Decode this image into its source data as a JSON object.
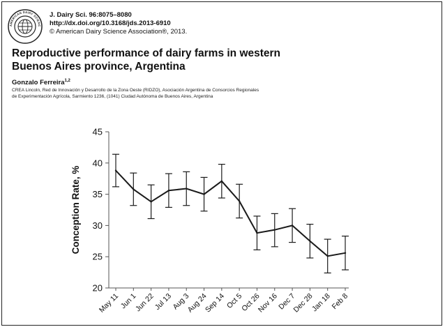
{
  "journal": {
    "citation": "J. Dairy Sci. 96:8075–8080",
    "doi": "http://dx.doi.org/10.3168/jds.2013-6910",
    "copyright": "© American Dairy Science Association®, 2013.",
    "seal_text": "AMERICAN DAIRY SCIENCE ASSOCIATION"
  },
  "paper": {
    "title_line1": "Reproductive performance of dairy farms in western",
    "title_line2": "Buenos Aires province, Argentina",
    "author": "Gonzalo Ferreira",
    "author_sup": "1,2",
    "affiliation_line1": "CREA Lincoln, Red de Innovación y Desarrollo de la Zona Oeste (RIDZO), Asociación Argentina de Consorcios Regionales",
    "affiliation_line2": "de Experimentación Agrícola, Sarmiento 1236, (1041) Ciudad Autónoma de Buenos Aires, Argentina"
  },
  "colors": {
    "line": "#1a1a1a",
    "axis": "#555555",
    "text": "#111111"
  },
  "chart_data": {
    "type": "line",
    "title": "",
    "xlabel": "",
    "ylabel": "Conception Rate, %",
    "categories": [
      "May 11",
      "Jun 1",
      "Jun 22",
      "Jul 13",
      "Aug 3",
      "Aug 24",
      "Sep 14",
      "Oct 5",
      "Oct 26",
      "Nov 16",
      "Dec 7",
      "Dec 28",
      "Jan 18",
      "Feb 8"
    ],
    "series": [
      {
        "values": [
          38.8,
          35.8,
          33.8,
          35.6,
          35.9,
          35.0,
          37.1,
          33.9,
          28.8,
          29.3,
          30.0,
          27.5,
          25.1,
          25.6
        ],
        "error_upper": [
          41.4,
          38.4,
          36.5,
          38.3,
          38.6,
          37.7,
          39.8,
          36.6,
          31.5,
          31.9,
          32.7,
          30.2,
          27.8,
          28.3
        ],
        "error_lower": [
          36.2,
          33.2,
          31.1,
          32.9,
          33.2,
          32.3,
          34.4,
          31.2,
          26.1,
          26.6,
          27.3,
          24.8,
          22.4,
          22.9
        ]
      }
    ],
    "ylim": [
      20,
      45
    ],
    "yticks": [
      "20",
      "25",
      "30",
      "35",
      "40",
      "45"
    ],
    "grid": false
  }
}
